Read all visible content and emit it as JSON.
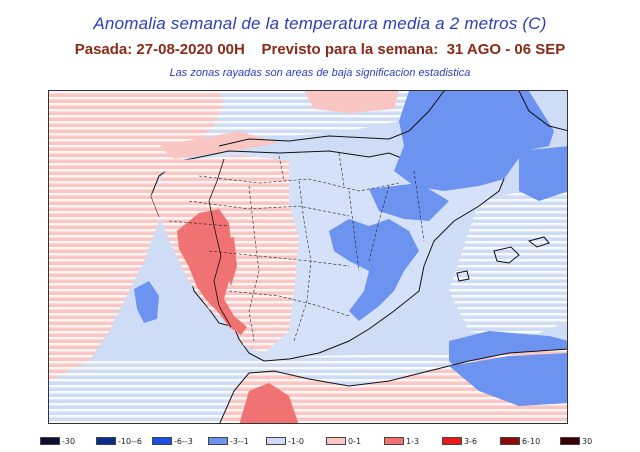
{
  "title": "Anomalia semanal de la temperatura media a 2 metros (C)",
  "subtitle": "Pasada: 27-08-2020 00H    Previsto para la semana:  31 AGO - 06 SEP",
  "note": "Las zonas rayadas son areas de baja significacion estadistica",
  "legend": [
    {
      "label": "-30",
      "color": "#0a1030"
    },
    {
      "label": "-10--6",
      "color": "#0a2c8c"
    },
    {
      "label": "-6--3",
      "color": "#1f4fe0"
    },
    {
      "label": "-3--1",
      "color": "#6b93ef"
    },
    {
      "label": "-1-0",
      "color": "#cddbf7"
    },
    {
      "label": "0-1",
      "color": "#f9c6c4"
    },
    {
      "label": "1-3",
      "color": "#f07272"
    },
    {
      "label": "3-6",
      "color": "#ea1a1a"
    },
    {
      "label": "6-10",
      "color": "#8c0a0a"
    },
    {
      "label": "30",
      "color": "#3a0000"
    }
  ]
}
